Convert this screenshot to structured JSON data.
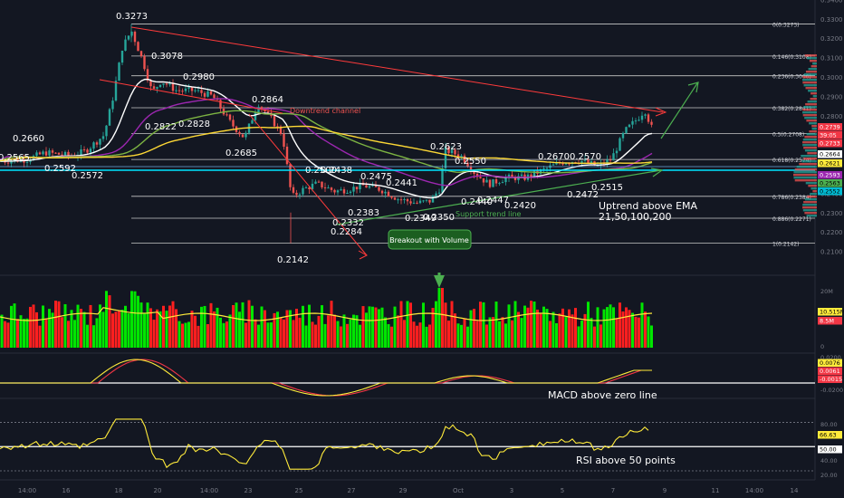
{
  "chart_data": [
    {
      "type": "candlestick",
      "ylim": [
        0.2042,
        0.3383
      ],
      "y_ticks": [
        "0.3400",
        "0.3300",
        "0.3200",
        "0.3100",
        "0.3000",
        "0.2900",
        "0.2800",
        "0.2700",
        "0.2600",
        "0.2500",
        "0.2400",
        "0.2300",
        "0.2200",
        "0.2100"
      ],
      "x_ticks": [
        "14:00",
        "16",
        "18",
        "20",
        "14:00",
        "23",
        "25",
        "27",
        "29",
        "Oct",
        "3",
        "5",
        "7",
        "9",
        "11",
        "14:00",
        "14"
      ],
      "fib_levels": [
        {
          "label": "0(0.3273)",
          "value": 0.3273
        },
        {
          "label": "0.146(0.3108)",
          "value": 0.3108
        },
        {
          "label": "0.236(0.3006)",
          "value": 0.3006
        },
        {
          "label": "0.382(0.2841)",
          "value": 0.2841
        },
        {
          "label": "0.5(0.2708)",
          "value": 0.2708
        },
        {
          "label": "0.618(0.2574)",
          "value": 0.2574
        },
        {
          "label": "0.786(0.2384)",
          "value": 0.2384
        },
        {
          "label": "0.886(0.2271)",
          "value": 0.2271
        },
        {
          "label": "1(0.2142)",
          "value": 0.2142
        }
      ],
      "price_labels": [
        "0.2565",
        "0.2660",
        "0.2592",
        "0.2572",
        "0.3273",
        "0.3078",
        "0.2980",
        "0.2822",
        "0.2828",
        "0.2864",
        "0.2685",
        "0.2142",
        "0.2500",
        "0.2438",
        "0.2475",
        "0.2441",
        "0.2383",
        "0.2332",
        "0.2284",
        "0.2349",
        "0.2350",
        "0.2623",
        "0.2550",
        "0.2440",
        "0.2447",
        "0.2420",
        "0.2670",
        "0.2570",
        "0.2515",
        "0.2472"
      ],
      "annotations": [
        "Downtrend channel",
        "Support trend line",
        "Breakout with Volume",
        "Uptrend above EMA",
        "21,50,100,200"
      ],
      "axis_badges": [
        {
          "text": "0.2739",
          "color": "#f23645"
        },
        {
          "text": "39:05",
          "color": "#f23645"
        },
        {
          "text": "0.2733",
          "color": "#f23645"
        },
        {
          "text": "0.2664",
          "color": "#ffffff"
        },
        {
          "text": "0.2621",
          "color": "#ffeb3b"
        },
        {
          "text": "0.2593",
          "color": "#9c27b0"
        },
        {
          "text": "0.2563",
          "color": "#4caf50"
        },
        {
          "text": "0.2552",
          "color": "#00bcd4"
        }
      ],
      "colors": {
        "up": "#26a69a",
        "down": "#ef5350",
        "ema21": "#ffffff",
        "ema50": "#9c27b0",
        "ema100": "#7cb342",
        "ema200": "#fdd835",
        "support": "#00e5ff",
        "trend": "#ff3b3b",
        "green_arrow": "#4caf50"
      }
    },
    {
      "type": "bar",
      "name": "volume",
      "ticks": [
        "20M",
        "0"
      ],
      "badges": [
        {
          "text": "10.515M",
          "color": "#ffeb3b"
        },
        {
          "text": "8.5M",
          "color": "#f23645"
        }
      ],
      "colors": {
        "up": "#00e600",
        "down": "#ff1f1f",
        "ma": "#ffeb3b",
        "marker": "#4caf50"
      }
    },
    {
      "type": "line",
      "name": "MACD",
      "ticks": [
        "0.0200",
        "0",
        "-0.0200"
      ],
      "badges": [
        {
          "text": "0.0076",
          "color": "#ffeb3b"
        },
        {
          "text": "0.0061",
          "color": "#f23645"
        },
        {
          "text": "-0.0015",
          "color": "#f23645"
        }
      ],
      "annotation": "MACD above zero line",
      "colors": {
        "macd": "#ffeb3b",
        "signal": "#f23645"
      }
    },
    {
      "type": "line",
      "name": "RSI",
      "ticks": [
        "80.00",
        "40.00",
        "20.00"
      ],
      "badges": [
        {
          "text": "66.63",
          "color": "#ffeb3b"
        },
        {
          "text": "50.00",
          "color": "#ffffff"
        }
      ],
      "annotation": "RSI above 50 points",
      "colors": {
        "rsi": "#ffeb3b"
      }
    }
  ]
}
